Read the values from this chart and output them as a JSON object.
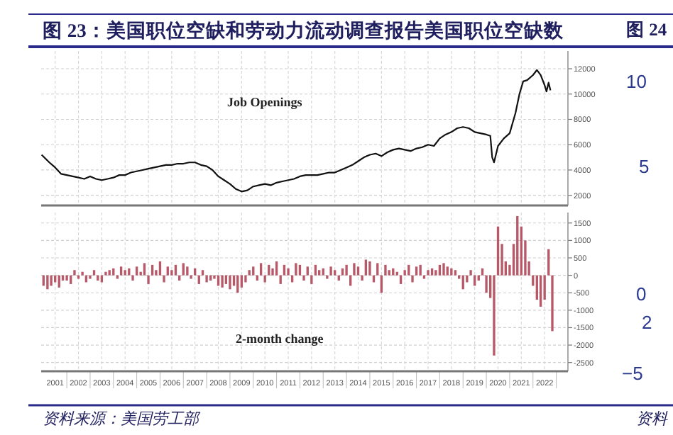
{
  "chart_data": [
    {
      "type": "line",
      "title": "图 23：美国职位空缺和劳动力流动调查报告美国职位空缺数",
      "series": [
        {
          "color": "#111111",
          "x": [
            2000.92,
            2001.25,
            2001.5,
            2001.75,
            2002.0,
            2002.25,
            2002.5,
            2002.75,
            2003.0,
            2003.25,
            2003.5,
            2003.75,
            2004.0,
            2004.25,
            2004.5,
            2004.75,
            2005.0,
            2005.25,
            2005.5,
            2005.75,
            2006.0,
            2006.25,
            2006.5,
            2006.75,
            2007.0,
            2007.25,
            2007.5,
            2007.75,
            2008.0,
            2008.25,
            2008.5,
            2008.75,
            2009.0,
            2009.25,
            2009.5,
            2009.75,
            2010.0,
            2010.25,
            2010.5,
            2010.75,
            2011.0,
            2011.25,
            2011.5,
            2011.75,
            2012.0,
            2012.25,
            2012.5,
            2012.75,
            2013.0,
            2013.25,
            2013.5,
            2013.75,
            2014.0,
            2014.25,
            2014.5,
            2014.75,
            2015.0,
            2015.25,
            2015.5,
            2015.75,
            2016.0,
            2016.25,
            2016.5,
            2016.75,
            2017.0,
            2017.25,
            2017.5,
            2017.75,
            2018.0,
            2018.25,
            2018.5,
            2018.75,
            2019.0,
            2019.25,
            2019.5,
            2019.75,
            2020.0,
            2020.17,
            2020.25,
            2020.33,
            2020.5,
            2020.75,
            2021.0,
            2021.25,
            2021.42,
            2021.58,
            2021.75,
            2022.0,
            2022.17,
            2022.33,
            2022.5,
            2022.58,
            2022.67,
            2022.75
          ],
          "values": [
            5200,
            4600,
            4200,
            3700,
            3600,
            3500,
            3400,
            3300,
            3500,
            3300,
            3200,
            3300,
            3400,
            3600,
            3600,
            3800,
            3900,
            4000,
            4100,
            4200,
            4300,
            4400,
            4400,
            4500,
            4500,
            4600,
            4600,
            4400,
            4300,
            4000,
            3500,
            3200,
            2900,
            2500,
            2300,
            2400,
            2700,
            2800,
            2900,
            2800,
            3000,
            3100,
            3200,
            3300,
            3500,
            3600,
            3600,
            3600,
            3700,
            3800,
            3800,
            4000,
            4200,
            4400,
            4700,
            5000,
            5200,
            5300,
            5100,
            5400,
            5600,
            5700,
            5600,
            5500,
            5700,
            5800,
            6000,
            5900,
            6500,
            6800,
            7000,
            7300,
            7400,
            7300,
            7000,
            6900,
            6800,
            6700,
            5000,
            4600,
            5900,
            6500,
            6900,
            8500,
            10000,
            11000,
            11100,
            11500,
            11900,
            11500,
            10700,
            10200,
            10900,
            10300
          ]
        }
      ],
      "xlim": [
        2000.9,
        2023.5
      ],
      "xticks": [
        {
          "value": 2001.5,
          "label": null
        },
        {
          "value": 2002.5,
          "label": null
        },
        {
          "value": 2003.5,
          "label": null
        },
        {
          "value": 2004.5,
          "label": null
        },
        {
          "value": 2005.5,
          "label": null
        },
        {
          "value": 2006.5,
          "label": null
        },
        {
          "value": 2007.5,
          "label": null
        },
        {
          "value": 2008.5,
          "label": null
        },
        {
          "value": 2009.5,
          "label": null
        },
        {
          "value": 2010.5,
          "label": null
        },
        {
          "value": 2011.5,
          "label": null
        },
        {
          "value": 2012.5,
          "label": null
        },
        {
          "value": 2013.5,
          "label": null
        },
        {
          "value": 2014.5,
          "label": null
        },
        {
          "value": 2015.5,
          "label": null
        },
        {
          "value": 2016.5,
          "label": null
        },
        {
          "value": 2017.5,
          "label": null
        },
        {
          "value": 2018.5,
          "label": null
        },
        {
          "value": 2019.5,
          "label": null
        },
        {
          "value": 2020.5,
          "label": null
        },
        {
          "value": 2021.5,
          "label": null
        },
        {
          "value": 2022.5,
          "label": null
        }
      ],
      "ylim": [
        1200,
        13400
      ],
      "yticks": [
        2000,
        4000,
        6000,
        8000,
        10000,
        12000
      ],
      "tick_labels": "y",
      "grid": true,
      "annotations": [
        "Job Openings"
      ]
    },
    {
      "type": "bar",
      "color": "#b8596a",
      "x": [
        2001.0,
        2001.17,
        2001.33,
        2001.5,
        2001.67,
        2001.83,
        2002.0,
        2002.17,
        2002.33,
        2002.5,
        2002.67,
        2002.83,
        2003.0,
        2003.17,
        2003.33,
        2003.5,
        2003.67,
        2003.83,
        2004.0,
        2004.17,
        2004.33,
        2004.5,
        2004.67,
        2004.83,
        2005.0,
        2005.17,
        2005.33,
        2005.5,
        2005.67,
        2005.83,
        2006.0,
        2006.17,
        2006.33,
        2006.5,
        2006.67,
        2006.83,
        2007.0,
        2007.17,
        2007.33,
        2007.5,
        2007.67,
        2007.83,
        2008.0,
        2008.17,
        2008.33,
        2008.5,
        2008.67,
        2008.83,
        2009.0,
        2009.17,
        2009.33,
        2009.5,
        2009.67,
        2009.83,
        2010.0,
        2010.17,
        2010.33,
        2010.5,
        2010.67,
        2010.83,
        2011.0,
        2011.17,
        2011.33,
        2011.5,
        2011.67,
        2011.83,
        2012.0,
        2012.17,
        2012.33,
        2012.5,
        2012.67,
        2012.83,
        2013.0,
        2013.17,
        2013.33,
        2013.5,
        2013.67,
        2013.83,
        2014.0,
        2014.17,
        2014.33,
        2014.5,
        2014.67,
        2014.83,
        2015.0,
        2015.17,
        2015.33,
        2015.5,
        2015.67,
        2015.83,
        2016.0,
        2016.17,
        2016.33,
        2016.5,
        2016.67,
        2016.83,
        2017.0,
        2017.17,
        2017.33,
        2017.5,
        2017.67,
        2017.83,
        2018.0,
        2018.17,
        2018.33,
        2018.5,
        2018.67,
        2018.83,
        2019.0,
        2019.17,
        2019.33,
        2019.5,
        2019.67,
        2019.83,
        2020.0,
        2020.17,
        2020.33,
        2020.5,
        2020.67,
        2020.83,
        2021.0,
        2021.17,
        2021.33,
        2021.5,
        2021.67,
        2021.83,
        2022.0,
        2022.17,
        2022.33,
        2022.5,
        2022.67,
        2022.83
      ],
      "values": [
        -300,
        -400,
        -300,
        -200,
        -350,
        -150,
        -150,
        -250,
        150,
        -100,
        100,
        -200,
        -100,
        150,
        -150,
        -200,
        100,
        150,
        200,
        -100,
        250,
        150,
        200,
        -150,
        250,
        100,
        350,
        -250,
        300,
        150,
        400,
        -200,
        250,
        150,
        300,
        -150,
        350,
        250,
        -100,
        200,
        -250,
        150,
        -200,
        -150,
        -100,
        -300,
        -350,
        -250,
        -400,
        -300,
        -500,
        -350,
        -200,
        150,
        250,
        -150,
        350,
        -200,
        300,
        200,
        400,
        -250,
        300,
        200,
        -200,
        350,
        300,
        -150,
        250,
        -250,
        300,
        150,
        200,
        -100,
        250,
        150,
        -150,
        200,
        300,
        -300,
        350,
        250,
        -150,
        450,
        400,
        -200,
        350,
        -500,
        300,
        150,
        200,
        100,
        -250,
        150,
        300,
        -200,
        250,
        300,
        -100,
        150,
        200,
        150,
        300,
        350,
        250,
        200,
        150,
        -100,
        -400,
        -200,
        150,
        -300,
        -150,
        200,
        -500,
        -650,
        -2300,
        1400,
        900,
        400,
        300,
        900,
        1700,
        1400,
        1000,
        400,
        -300,
        -700,
        -900,
        -700,
        750,
        -1600
      ],
      "xlim": [
        2000.9,
        2023.5
      ],
      "xticks": [
        {
          "value": 2001.5,
          "label": "2001"
        },
        {
          "value": 2002.5,
          "label": "2002"
        },
        {
          "value": 2003.5,
          "label": "2003"
        },
        {
          "value": 2004.5,
          "label": "2004"
        },
        {
          "value": 2005.5,
          "label": "2005"
        },
        {
          "value": 2006.5,
          "label": "2006"
        },
        {
          "value": 2007.5,
          "label": "2007"
        },
        {
          "value": 2008.5,
          "label": "2008"
        },
        {
          "value": 2009.5,
          "label": "2009"
        },
        {
          "value": 2010.5,
          "label": "2010"
        },
        {
          "value": 2011.5,
          "label": "2011"
        },
        {
          "value": 2012.5,
          "label": "2012"
        },
        {
          "value": 2013.5,
          "label": "2013"
        },
        {
          "value": 2014.5,
          "label": "2014"
        },
        {
          "value": 2015.5,
          "label": "2015"
        },
        {
          "value": 2016.5,
          "label": "2016"
        },
        {
          "value": 2017.5,
          "label": "2017"
        },
        {
          "value": 2018.5,
          "label": "2018"
        },
        {
          "value": 2019.5,
          "label": "2019"
        },
        {
          "value": 2020.5,
          "label": "2020"
        },
        {
          "value": 2021.5,
          "label": "2021"
        },
        {
          "value": 2022.5,
          "label": "2022"
        }
      ],
      "ylim": [
        -2750,
        1800
      ],
      "yticks": [
        -2500,
        -2000,
        -1500,
        -1000,
        -500,
        0,
        500,
        1000,
        1500
      ],
      "grid": true,
      "annotations": [
        "2-month change",
        "资料来源：美国劳工部"
      ]
    },
    {
      "type": "other",
      "title": "图 24",
      "annotations": [
        "10",
        "5",
        "0",
        "2",
        "−5",
        "资料"
      ]
    }
  ]
}
